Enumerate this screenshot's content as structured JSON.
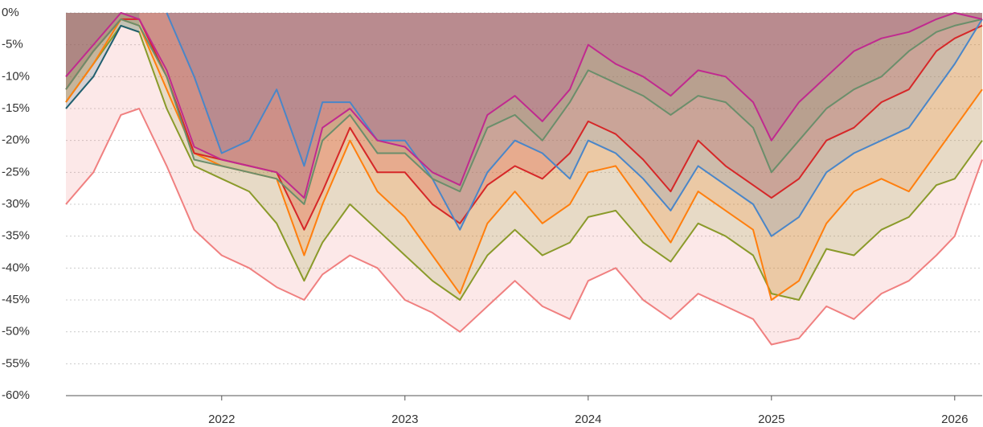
{
  "chart_data": {
    "type": "area",
    "x": [
      2021.15,
      2021.3,
      2021.45,
      2021.55,
      2021.7,
      2021.85,
      2022.0,
      2022.15,
      2022.3,
      2022.45,
      2022.55,
      2022.7,
      2022.85,
      2023.0,
      2023.15,
      2023.3,
      2023.45,
      2023.6,
      2023.75,
      2023.9,
      2024.0,
      2024.15,
      2024.3,
      2024.45,
      2024.6,
      2024.75,
      2024.9,
      2025.0,
      2025.15,
      2025.3,
      2025.45,
      2025.6,
      2025.75,
      2025.9,
      2026.0,
      2026.15
    ],
    "series": [
      {
        "color": "#f08080",
        "values": [
          -30,
          -25,
          -16,
          -15,
          -24,
          -34,
          -38,
          -40,
          -43,
          -45,
          -41,
          -38,
          -40,
          -45,
          -47,
          -50,
          -46,
          -42,
          -46,
          -48,
          -42,
          -40,
          -45,
          -48,
          -44,
          -46,
          -48,
          -52,
          -51,
          -46,
          -48,
          -44,
          -42,
          -38,
          -35,
          -23
        ]
      },
      {
        "color": "#8a9a2a",
        "values": [
          -14,
          -8,
          -2,
          -3,
          -15,
          -24,
          -26,
          -28,
          -33,
          -42,
          -36,
          -30,
          -34,
          -38,
          -42,
          -45,
          -38,
          -34,
          -38,
          -36,
          -32,
          -31,
          -36,
          -39,
          -33,
          -35,
          -38,
          -44,
          -45,
          -37,
          -38,
          -34,
          -32,
          -27,
          -26,
          -20
        ]
      },
      {
        "color": "#ff7f0e",
        "values": [
          -14,
          -8,
          -1,
          -2,
          -12,
          -22,
          -24,
          -25,
          -26,
          -38,
          -30,
          -20,
          -28,
          -32,
          -38,
          -44,
          -33,
          -28,
          -33,
          -30,
          -25,
          -24,
          -30,
          -36,
          -28,
          -31,
          -34,
          -45,
          -42,
          -33,
          -28,
          -26,
          -28,
          -22,
          -18,
          -12
        ]
      },
      {
        "color": "#d62728",
        "values": [
          -12,
          -6,
          -1,
          -1,
          -10,
          -22,
          -23,
          -24,
          -25,
          -34,
          -28,
          -18,
          -25,
          -25,
          -30,
          -33,
          -27,
          -24,
          -26,
          -22,
          -17,
          -19,
          -23,
          -28,
          -20,
          -24,
          -27,
          -29,
          -26,
          -20,
          -18,
          -14,
          -12,
          -6,
          -4,
          -2
        ]
      },
      {
        "color": "#4a86c8",
        "values": [
          null,
          null,
          null,
          null,
          0,
          -10,
          -22,
          -20,
          -12,
          -24,
          -14,
          -14,
          -20,
          -20,
          -26,
          -34,
          -25,
          -20,
          -22,
          -26,
          -20,
          -22,
          -26,
          -31,
          -24,
          -27,
          -30,
          -35,
          -32,
          -25,
          -22,
          -20,
          -18,
          -12,
          -8,
          -1
        ]
      },
      {
        "color": "#6b8e6b",
        "values": [
          -12,
          -6,
          -1,
          -2,
          -10,
          -23,
          -24,
          -25,
          -26,
          -30,
          -20,
          -16,
          -22,
          -22,
          -26,
          -28,
          -18,
          -16,
          -20,
          -14,
          -9,
          -11,
          -13,
          -16,
          -13,
          -14,
          -18,
          -25,
          -20,
          -15,
          -12,
          -10,
          -6,
          -3,
          -2,
          -1
        ]
      },
      {
        "color": "#c02a8f",
        "values": [
          -10,
          -5,
          0,
          -1,
          -9,
          -21,
          -23,
          -24,
          -25,
          -29,
          -18,
          -15,
          -20,
          -21,
          -25,
          -27,
          -16,
          -13,
          -17,
          -12,
          -5,
          -8,
          -10,
          -13,
          -9,
          -10,
          -14,
          -20,
          -14,
          -10,
          -6,
          -4,
          -3,
          -1,
          0,
          -1
        ]
      },
      {
        "color": "#1f5f6f",
        "values": [
          -15,
          -10,
          -2,
          -3,
          null,
          null,
          null,
          null,
          null,
          null,
          null,
          null,
          null,
          null,
          null,
          null,
          null,
          null,
          null,
          null,
          null,
          null,
          null,
          null,
          null,
          null,
          null,
          null,
          null,
          null,
          null,
          null,
          null,
          null,
          null,
          null
        ]
      }
    ],
    "xlim": [
      2021.15,
      2026.15
    ],
    "xticks": [
      2022,
      2023,
      2024,
      2025,
      2026
    ],
    "ylim": [
      -60,
      0
    ],
    "yticks": [
      {
        "value": 0,
        "label": "0%"
      },
      {
        "value": -5,
        "label": "-5%"
      },
      {
        "value": -10,
        "label": "-10%"
      },
      {
        "value": -15,
        "label": "-15%"
      },
      {
        "value": -20,
        "label": "-20%"
      },
      {
        "value": -25,
        "label": "-25%"
      },
      {
        "value": -30,
        "label": "-30%"
      },
      {
        "value": -35,
        "label": "-35%"
      },
      {
        "value": -40,
        "label": "-40%"
      },
      {
        "value": -45,
        "label": "-45%"
      },
      {
        "value": -50,
        "label": "-50%"
      },
      {
        "value": -55,
        "label": "-55%"
      },
      {
        "value": -60,
        "label": "-60%"
      }
    ],
    "grid": true
  }
}
